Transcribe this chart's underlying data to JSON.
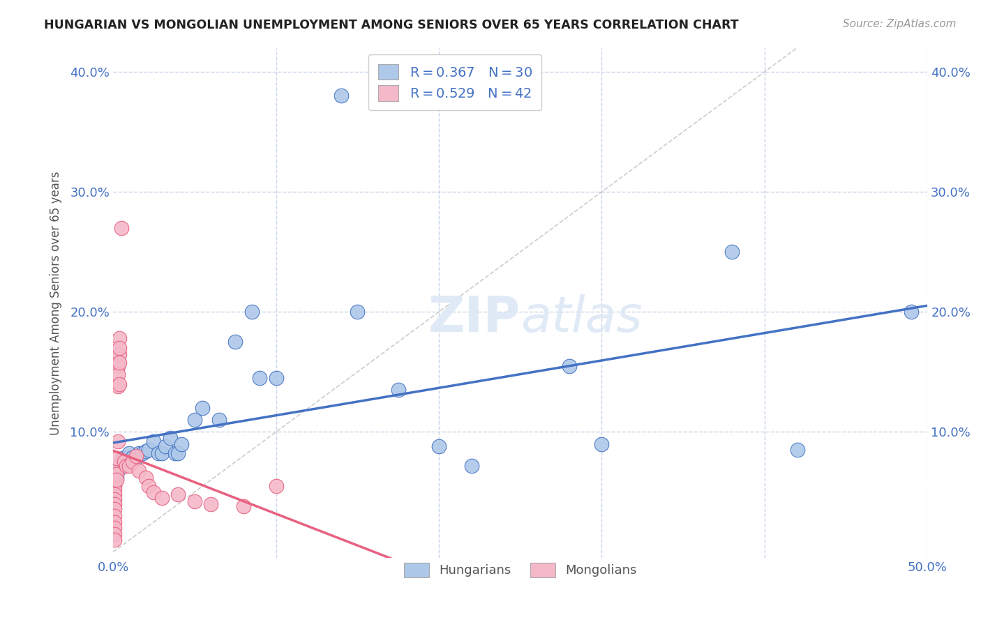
{
  "title": "HUNGARIAN VS MONGOLIAN UNEMPLOYMENT AMONG SENIORS OVER 65 YEARS CORRELATION CHART",
  "source": "Source: ZipAtlas.com",
  "ylabel": "Unemployment Among Seniors over 65 years",
  "xlim": [
    0.0,
    0.5
  ],
  "ylim": [
    -0.005,
    0.42
  ],
  "xticks": [
    0.0,
    0.1,
    0.2,
    0.3,
    0.4,
    0.5
  ],
  "yticks": [
    0.0,
    0.1,
    0.2,
    0.3,
    0.4
  ],
  "xticklabels": [
    "0.0%",
    "",
    "",
    "",
    "",
    "50.0%"
  ],
  "yticklabels": [
    "",
    "10.0%",
    "20.0%",
    "30.0%",
    "40.0%"
  ],
  "right_yticklabels": [
    "",
    "10.0%",
    "20.0%",
    "30.0%",
    "40.0%"
  ],
  "hungarian_color": "#adc8e8",
  "mongolian_color": "#f5b8c8",
  "hungarian_scatter": [
    [
      0.001,
      0.068
    ],
    [
      0.002,
      0.062
    ],
    [
      0.003,
      0.068
    ],
    [
      0.004,
      0.072
    ],
    [
      0.005,
      0.075
    ],
    [
      0.006,
      0.078
    ],
    [
      0.007,
      0.073
    ],
    [
      0.008,
      0.076
    ],
    [
      0.009,
      0.078
    ],
    [
      0.01,
      0.082
    ],
    [
      0.012,
      0.079
    ],
    [
      0.014,
      0.078
    ],
    [
      0.016,
      0.082
    ],
    [
      0.018,
      0.082
    ],
    [
      0.02,
      0.084
    ],
    [
      0.022,
      0.085
    ],
    [
      0.025,
      0.092
    ],
    [
      0.028,
      0.082
    ],
    [
      0.03,
      0.082
    ],
    [
      0.032,
      0.088
    ],
    [
      0.035,
      0.095
    ],
    [
      0.038,
      0.082
    ],
    [
      0.04,
      0.082
    ],
    [
      0.042,
      0.09
    ],
    [
      0.05,
      0.11
    ],
    [
      0.055,
      0.12
    ],
    [
      0.065,
      0.11
    ],
    [
      0.075,
      0.175
    ],
    [
      0.085,
      0.2
    ],
    [
      0.09,
      0.145
    ],
    [
      0.1,
      0.145
    ],
    [
      0.14,
      0.38
    ],
    [
      0.15,
      0.2
    ],
    [
      0.175,
      0.135
    ],
    [
      0.2,
      0.088
    ],
    [
      0.22,
      0.072
    ],
    [
      0.28,
      0.155
    ],
    [
      0.3,
      0.09
    ],
    [
      0.38,
      0.25
    ],
    [
      0.42,
      0.085
    ],
    [
      0.49,
      0.2
    ]
  ],
  "mongolian_scatter": [
    [
      0.001,
      0.062
    ],
    [
      0.001,
      0.058
    ],
    [
      0.001,
      0.055
    ],
    [
      0.001,
      0.052
    ],
    [
      0.001,
      0.048
    ],
    [
      0.001,
      0.044
    ],
    [
      0.001,
      0.04
    ],
    [
      0.001,
      0.036
    ],
    [
      0.001,
      0.03
    ],
    [
      0.001,
      0.025
    ],
    [
      0.001,
      0.02
    ],
    [
      0.001,
      0.015
    ],
    [
      0.001,
      0.01
    ],
    [
      0.002,
      0.07
    ],
    [
      0.002,
      0.065
    ],
    [
      0.002,
      0.06
    ],
    [
      0.002,
      0.078
    ],
    [
      0.003,
      0.155
    ],
    [
      0.003,
      0.148
    ],
    [
      0.003,
      0.138
    ],
    [
      0.003,
      0.092
    ],
    [
      0.004,
      0.165
    ],
    [
      0.004,
      0.158
    ],
    [
      0.004,
      0.14
    ],
    [
      0.004,
      0.178
    ],
    [
      0.004,
      0.17
    ],
    [
      0.005,
      0.27
    ],
    [
      0.007,
      0.075
    ],
    [
      0.008,
      0.072
    ],
    [
      0.01,
      0.072
    ],
    [
      0.012,
      0.075
    ],
    [
      0.014,
      0.08
    ],
    [
      0.016,
      0.068
    ],
    [
      0.02,
      0.062
    ],
    [
      0.022,
      0.055
    ],
    [
      0.025,
      0.05
    ],
    [
      0.03,
      0.045
    ],
    [
      0.04,
      0.048
    ],
    [
      0.05,
      0.042
    ],
    [
      0.06,
      0.04
    ],
    [
      0.08,
      0.038
    ],
    [
      0.1,
      0.055
    ]
  ],
  "hungarian_line_color": "#4472c4",
  "mongolian_line_color": "#e86080",
  "background_color": "#ffffff",
  "grid_color": "#c8d4e8",
  "legend_text_color": "#4472c4",
  "legend_label_color": "#222222"
}
